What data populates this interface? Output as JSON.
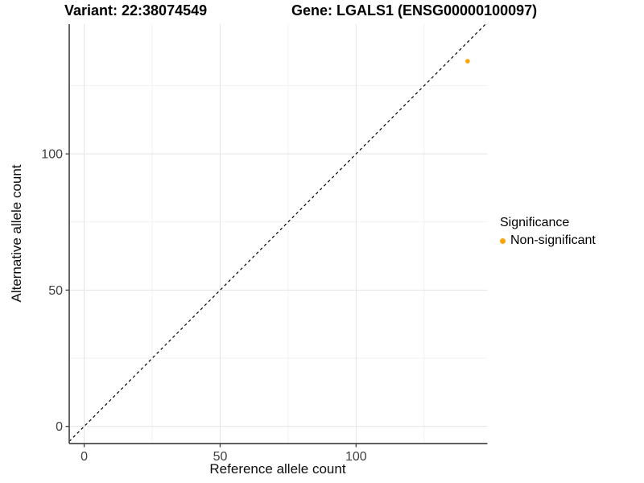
{
  "figure": {
    "title_left": "Variant: 22:38074549",
    "title_right": "Gene: LGALS1 (ENSG00000100097)"
  },
  "chart_data": {
    "type": "scatter",
    "title_left": "Variant: 22:38074549",
    "title_right": "Gene: LGALS1 (ENSG00000100097)",
    "variant": "22:38074549",
    "gene_symbol": "LGALS1",
    "gene_id": "ENSG00000100097",
    "xlabel": "Reference allele count",
    "ylabel": "Alternative allele count",
    "xlim": [
      -5.5,
      148.3
    ],
    "ylim": [
      -6.3,
      147.6
    ],
    "x_ticks": [
      0,
      50,
      100
    ],
    "y_ticks": [
      0,
      50,
      100
    ],
    "x_minor_gridlines": [
      25,
      75,
      125
    ],
    "y_minor_gridlines": [
      25,
      75,
      125
    ],
    "grid": true,
    "points": [
      {
        "x": 141,
        "y": 134,
        "label": "Non-significant",
        "color": "#FFA500",
        "radius": 2.8
      }
    ],
    "identity_line": {
      "equation": "y = x",
      "style": "dashed",
      "color": "#000000"
    },
    "legend": {
      "title": "Significance",
      "position": "right",
      "items": [
        {
          "label": "Non-significant",
          "color": "#FFA500"
        }
      ]
    },
    "colors": {
      "background": "#FFFFFF",
      "gridline_major": "#E4E4E4",
      "gridline_minor": "#F1F1F1",
      "axis_line": "#4A4A4A",
      "tick_label": "#404040",
      "text": "#000000",
      "point": "#FFA500"
    }
  }
}
